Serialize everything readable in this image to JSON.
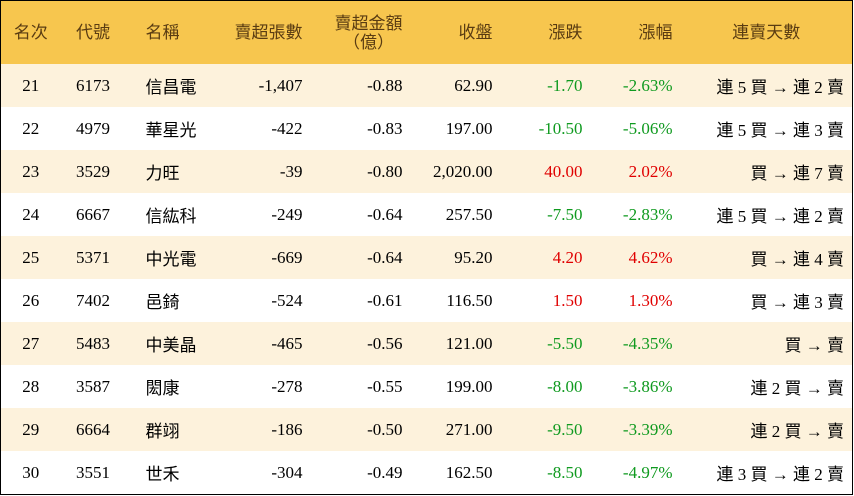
{
  "table": {
    "header": [
      "名次",
      "代號",
      "名稱",
      "賣超張數",
      [
        "賣超金額",
        "（億）"
      ],
      "收盤",
      "漲跌",
      "漲幅",
      "連賣天數"
    ],
    "rows": [
      [
        "21",
        "6173",
        "信昌電",
        "-1,407",
        "-0.88",
        "62.90",
        "-1.70",
        "-2.63%",
        "連 5 買 → 連 2 賣"
      ],
      [
        "22",
        "4979",
        "華星光",
        "-422",
        "-0.83",
        "197.00",
        "-10.50",
        "-5.06%",
        "連 5 買 → 連 3 賣"
      ],
      [
        "23",
        "3529",
        "力旺",
        "-39",
        "-0.80",
        "2,020.00",
        "40.00",
        "2.02%",
        "買 → 連 7 賣"
      ],
      [
        "24",
        "6667",
        "信紘科",
        "-249",
        "-0.64",
        "257.50",
        "-7.50",
        "-2.83%",
        "連 5 買 → 連 2 賣"
      ],
      [
        "25",
        "5371",
        "中光電",
        "-669",
        "-0.64",
        "95.20",
        "4.20",
        "4.62%",
        "買 → 連 4 賣"
      ],
      [
        "26",
        "7402",
        "邑錡",
        "-524",
        "-0.61",
        "116.50",
        "1.50",
        "1.30%",
        "買 → 連 3 賣"
      ],
      [
        "27",
        "5483",
        "中美晶",
        "-465",
        "-0.56",
        "121.00",
        "-5.50",
        "-4.35%",
        "買 → 賣"
      ],
      [
        "28",
        "3587",
        "閎康",
        "-278",
        "-0.55",
        "199.00",
        "-8.00",
        "-3.86%",
        "連 2 買 → 賣"
      ],
      [
        "29",
        "6664",
        "群翊",
        "-186",
        "-0.50",
        "271.00",
        "-9.50",
        "-3.39%",
        "連 2 買 → 賣"
      ],
      [
        "30",
        "3551",
        "世禾",
        "-304",
        "-0.49",
        "162.50",
        "-8.50",
        "-4.97%",
        "連 3 買 → 連 2 賣"
      ]
    ]
  }
}
